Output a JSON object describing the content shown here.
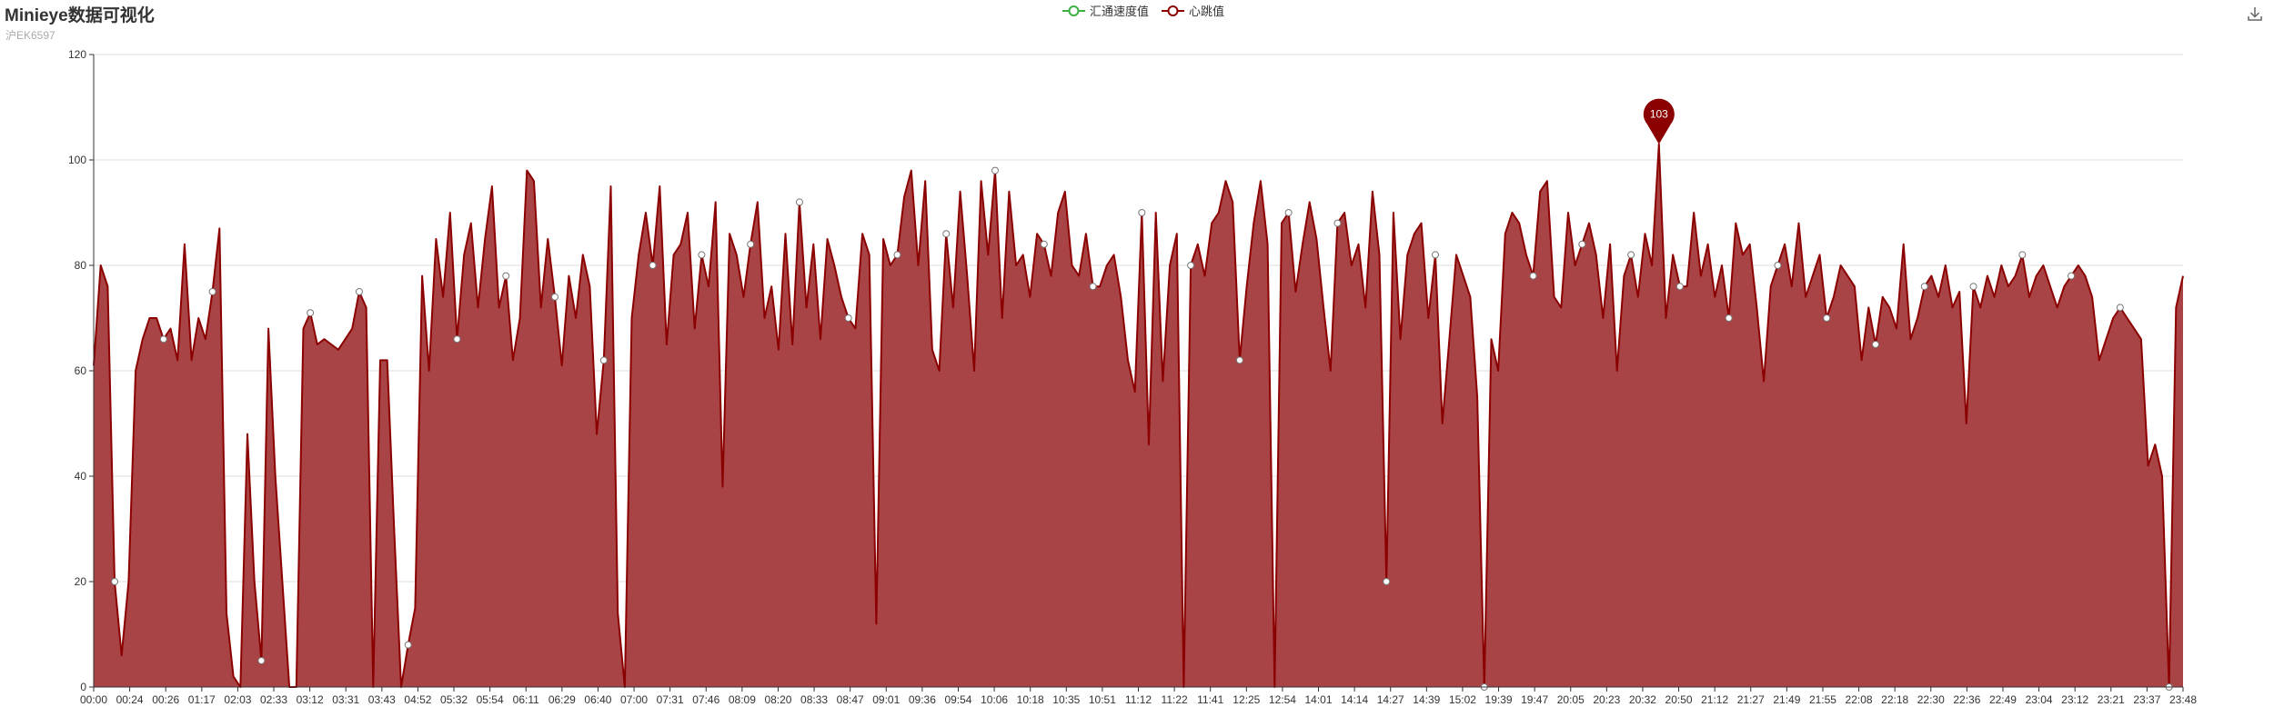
{
  "title": "Minieye数据可视化",
  "subtitle": "沪EK6597",
  "legend": [
    {
      "name": "汇通速度值",
      "color": "#3cb043"
    },
    {
      "name": "心跳值",
      "color": "#8b0000"
    }
  ],
  "toolbox": {
    "icon": "download-icon"
  },
  "colors": {
    "line": "#8b0000",
    "area": "#a94446",
    "grid": "#dddddd",
    "axis": "#333333"
  },
  "chart_data": {
    "type": "area",
    "title": "Minieye数据可视化",
    "subtitle": "沪EK6597",
    "ylim": [
      0,
      120
    ],
    "yticks": [
      0,
      20,
      40,
      60,
      80,
      100,
      120
    ],
    "grid": "horizontal",
    "legend_position": "top-center",
    "x_tick_labels": [
      "00:00",
      "00:24",
      "00:26",
      "01:17",
      "02:03",
      "02:33",
      "03:12",
      "03:31",
      "03:43",
      "04:52",
      "05:32",
      "05:54",
      "06:11",
      "06:29",
      "06:40",
      "07:00",
      "07:31",
      "07:46",
      "08:09",
      "08:20",
      "08:33",
      "08:47",
      "09:01",
      "09:36",
      "09:54",
      "10:06",
      "10:18",
      "10:35",
      "10:51",
      "11:12",
      "11:22",
      "11:41",
      "12:25",
      "12:54",
      "14:01",
      "14:14",
      "14:27",
      "14:39",
      "15:02",
      "19:39",
      "19:47",
      "20:05",
      "20:23",
      "20:32",
      "20:50",
      "21:12",
      "21:27",
      "21:49",
      "21:55",
      "22:08",
      "22:18",
      "22:30",
      "22:36",
      "22:49",
      "23:04",
      "23:12",
      "23:21",
      "23:37",
      "23:48"
    ],
    "series": [
      {
        "name": "心跳值",
        "values": [
          61,
          80,
          76,
          20,
          6,
          20,
          60,
          66,
          70,
          70,
          66,
          68,
          62,
          84,
          62,
          70,
          66,
          75,
          87,
          14,
          2,
          0,
          48,
          20,
          5,
          68,
          40,
          20,
          0,
          0,
          68,
          71,
          65,
          66,
          65,
          64,
          66,
          68,
          75,
          72,
          0,
          62,
          62,
          30,
          0,
          8,
          15,
          78,
          60,
          85,
          74,
          90,
          66,
          82,
          88,
          72,
          85,
          95,
          72,
          78,
          62,
          70,
          98,
          96,
          72,
          85,
          74,
          61,
          78,
          70,
          82,
          76,
          48,
          62,
          95,
          14,
          0,
          70,
          82,
          90,
          80,
          95,
          65,
          82,
          84,
          90,
          68,
          82,
          76,
          92,
          38,
          86,
          82,
          74,
          84,
          92,
          70,
          76,
          64,
          86,
          65,
          92,
          72,
          84,
          66,
          85,
          80,
          74,
          70,
          68,
          86,
          82,
          12,
          85,
          80,
          82,
          93,
          98,
          80,
          96,
          64,
          60,
          86,
          72,
          94,
          78,
          60,
          96,
          82,
          98,
          70,
          94,
          80,
          82,
          74,
          86,
          84,
          78,
          90,
          94,
          80,
          78,
          86,
          76,
          76,
          80,
          82,
          74,
          62,
          56,
          90,
          46,
          90,
          58,
          80,
          86,
          0,
          80,
          84,
          78,
          88,
          90,
          96,
          92,
          62,
          76,
          88,
          96,
          84,
          0,
          88,
          90,
          75,
          84,
          92,
          85,
          72,
          60,
          88,
          90,
          80,
          84,
          72,
          94,
          82,
          20,
          90,
          66,
          82,
          86,
          88,
          70,
          82,
          50,
          66,
          82,
          78,
          74,
          55,
          0,
          66,
          60,
          86,
          90,
          88,
          82,
          78,
          94,
          96,
          74,
          72,
          90,
          80,
          84,
          88,
          82,
          70,
          84,
          60,
          78,
          82,
          74,
          86,
          80,
          103,
          70,
          82,
          76,
          76,
          90,
          78,
          84,
          74,
          80,
          70,
          88,
          82,
          84,
          72,
          58,
          76,
          80,
          84,
          76,
          88,
          74,
          78,
          82,
          70,
          74,
          80,
          78,
          76,
          62,
          72,
          65,
          74,
          72,
          68,
          84,
          66,
          70,
          76,
          78,
          74,
          80,
          72,
          75,
          50,
          76,
          72,
          78,
          74,
          80,
          76,
          78,
          82,
          74,
          78,
          80,
          76,
          72,
          76,
          78,
          80,
          78,
          74,
          62,
          66,
          70,
          72,
          70,
          68,
          66,
          42,
          46,
          40,
          0,
          72,
          78
        ]
      }
    ],
    "annotations": [
      {
        "type": "max-pin",
        "label": "103",
        "value": 103
      }
    ]
  }
}
